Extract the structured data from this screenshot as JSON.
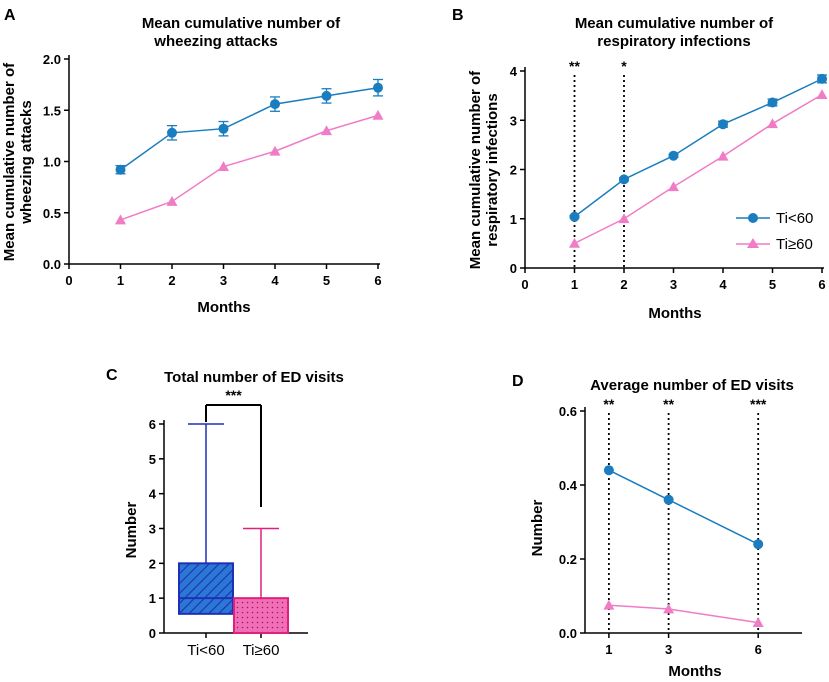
{
  "chart_data": [
    {
      "panel": "A",
      "type": "line",
      "title": [
        "Mean cumulative number of",
        "wheezing attacks"
      ],
      "xlabel": "Months",
      "ylabel": [
        "Mean cumulative number of",
        "wheezing attacks"
      ],
      "xlim": [
        0,
        6
      ],
      "ylim": [
        0,
        2.0
      ],
      "xticks": [
        "0",
        "1",
        "2",
        "3",
        "4",
        "5",
        "6"
      ],
      "yticks": [
        "0.0",
        "0.5",
        "1.0",
        "1.5",
        "2.0"
      ],
      "x": [
        1,
        2,
        3,
        4,
        5,
        6
      ],
      "series": [
        {
          "name": "Ti<60",
          "values": [
            0.92,
            1.28,
            1.32,
            1.56,
            1.64,
            1.72
          ],
          "errors": [
            0.04,
            0.07,
            0.07,
            0.07,
            0.07,
            0.08
          ]
        },
        {
          "name": "Ti≥60",
          "values": [
            0.43,
            0.61,
            0.95,
            1.1,
            1.3,
            1.45
          ]
        }
      ]
    },
    {
      "panel": "B",
      "type": "line",
      "title": [
        "Mean cumulative number of",
        "respiratory infections"
      ],
      "xlabel": "Months",
      "ylabel": [
        "Mean cumulative number of",
        "respiratory infections"
      ],
      "xlim": [
        0,
        6
      ],
      "ylim": [
        0,
        4
      ],
      "xticks": [
        "0",
        "1",
        "2",
        "3",
        "4",
        "5",
        "6"
      ],
      "yticks": [
        "0",
        "1",
        "2",
        "3",
        "4"
      ],
      "x": [
        1,
        2,
        3,
        4,
        5,
        6
      ],
      "series": [
        {
          "name": "Ti<60",
          "values": [
            1.04,
            1.8,
            2.28,
            2.92,
            3.36,
            3.84
          ],
          "errors": [
            0.02,
            0.03,
            0.03,
            0.06,
            0.07,
            0.08
          ]
        },
        {
          "name": "Ti≥60",
          "values": [
            0.5,
            1.0,
            1.65,
            2.27,
            2.93,
            3.52
          ]
        }
      ],
      "significance": [
        {
          "x": 1,
          "label": "**"
        },
        {
          "x": 2,
          "label": "*"
        }
      ],
      "legend": [
        "Ti<60",
        "Ti≥60"
      ]
    },
    {
      "panel": "C",
      "type": "box",
      "title": "Total number of  ED visits",
      "ylabel": "Number",
      "ylim": [
        0,
        6
      ],
      "yticks": [
        "0",
        "1",
        "2",
        "3",
        "4",
        "5",
        "6"
      ],
      "categories": [
        "Ti<60",
        "Ti≥60"
      ],
      "boxes": [
        {
          "name": "Ti<60",
          "min": 0,
          "q1": 0.55,
          "median": 1,
          "q3": 2,
          "max": 6
        },
        {
          "name": "Ti≥60",
          "min": 0,
          "q1": 0,
          "median": 0,
          "q3": 1,
          "max": 3
        }
      ],
      "significance": "***"
    },
    {
      "panel": "D",
      "type": "line",
      "title": "Average number of ED visits",
      "xlabel": "Months",
      "ylabel": "Number",
      "ylim": [
        0,
        0.6
      ],
      "xticks": [
        "1",
        "3",
        "6"
      ],
      "yticks": [
        "0.0",
        "0.2",
        "0.4",
        "0.6"
      ],
      "x": [
        1,
        3,
        6
      ],
      "series": [
        {
          "name": "Ti<60",
          "values": [
            0.44,
            0.36,
            0.24
          ]
        },
        {
          "name": "Ti≥60",
          "values": [
            0.075,
            0.065,
            0.028
          ]
        }
      ],
      "significance": [
        {
          "x": 1,
          "label": "**"
        },
        {
          "x": 3,
          "label": "**"
        },
        {
          "x": 6,
          "label": "***"
        }
      ]
    }
  ],
  "panel_labels": {
    "a": "A",
    "b": "B",
    "c": "C",
    "d": "D"
  },
  "colors": {
    "blue": "#1a7dbf",
    "pink": "#f07cc6",
    "boxblue_edge": "#1f2fb8",
    "boxblue_fill": "#2a78d4",
    "boxpink_edge": "#e0207f",
    "boxpink_fill": "#f070b8"
  }
}
